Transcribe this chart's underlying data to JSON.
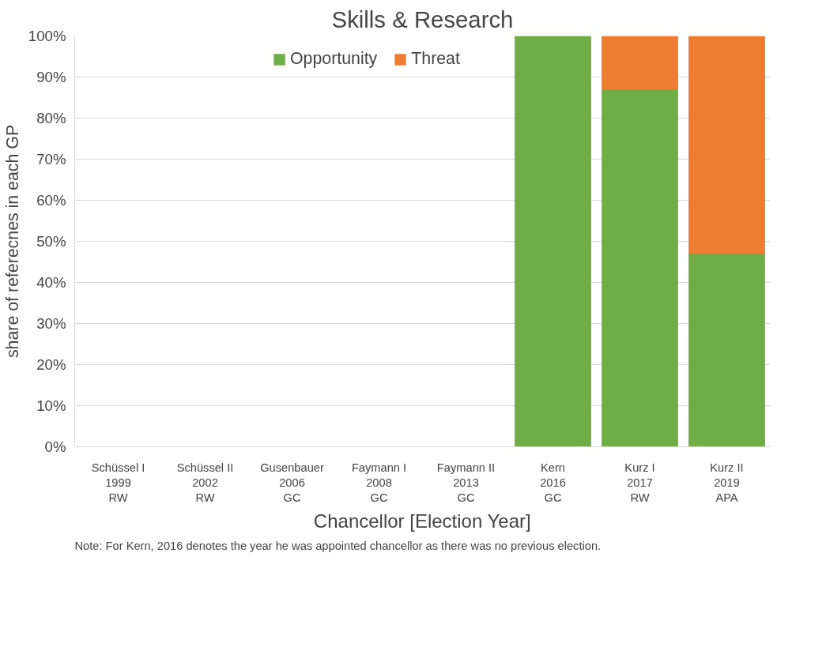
{
  "chart_data": {
    "type": "bar",
    "title": "Skills & Research",
    "xlabel": "Chancellor [Election Year]",
    "ylabel": "share of referecnes in each GP",
    "categories": [
      "Schüssel I\n1999\nRW",
      "Schüssel II\n2002\nRW",
      "Gusenbauer\n2006\nGC",
      "Faymann I\n2008\nGC",
      "Faymann II\n2013\nGC",
      "Kern\n2016\nGC",
      "Kurz I\n2017\nRW",
      "Kurz II\n2019\nAPA"
    ],
    "series": [
      {
        "name": "Opportunity",
        "color": "#70ad47",
        "values": [
          null,
          null,
          null,
          null,
          null,
          100,
          87,
          47
        ]
      },
      {
        "name": "Threat",
        "color": "#ed7d31",
        "values": [
          null,
          null,
          null,
          null,
          null,
          0,
          13,
          53
        ]
      }
    ],
    "stacked": true,
    "ylim": [
      0,
      100
    ],
    "yticks": [
      {
        "value": 0,
        "label": "0%"
      },
      {
        "value": 10,
        "label": "10%"
      },
      {
        "value": 20,
        "label": "20%"
      },
      {
        "value": 30,
        "label": "30%"
      },
      {
        "value": 40,
        "label": "40%"
      },
      {
        "value": 50,
        "label": "50%"
      },
      {
        "value": 60,
        "label": "60%"
      },
      {
        "value": 70,
        "label": "70%"
      },
      {
        "value": 80,
        "label": "80%"
      },
      {
        "value": 90,
        "label": "90%"
      },
      {
        "value": 100,
        "label": "100%"
      }
    ],
    "grid": "y",
    "legend": "top",
    "annotations": [
      "Note: For Kern, 2016 denotes the year he was appointed chancellor as there was no previous election."
    ]
  }
}
